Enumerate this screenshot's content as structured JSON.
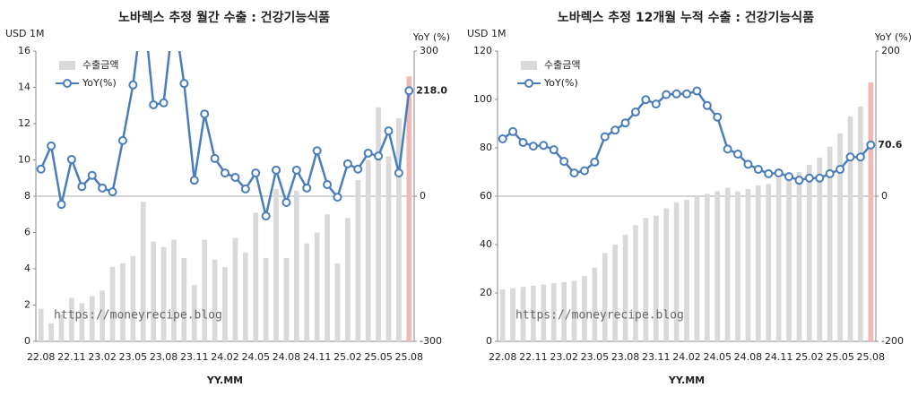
{
  "chart_data": [
    {
      "type": "bar_line",
      "title": "노바렉스 추정 월간 수출 : 건강기능식품",
      "y_label": "USD 1M",
      "y2_label": "YoY (%)",
      "x_label": "YY.MM",
      "watermark": "https://moneyrecipe.blog",
      "categories": [
        "22.08",
        null,
        null,
        "22.11",
        null,
        null,
        "23.02",
        null,
        null,
        "23.05",
        null,
        null,
        "23.08",
        null,
        null,
        "23.11",
        null,
        null,
        "24.02",
        null,
        null,
        "24.05",
        null,
        null,
        "24.08",
        null,
        null,
        "24.11",
        null,
        null,
        "25.02",
        null,
        null,
        "25.05",
        null,
        null,
        "25.08"
      ],
      "ylim": [
        0,
        16
      ],
      "yticks": [
        0,
        2,
        4,
        6,
        8,
        10,
        12,
        14,
        16
      ],
      "y2lim": [
        -300,
        300
      ],
      "y2ticks": [
        -300,
        0,
        300
      ],
      "series": [
        {
          "name": "수출금액",
          "kind": "bar",
          "color": "#d9d9d9",
          "last_color": "#f2b8b8",
          "values": [
            1.8,
            1.0,
            1.5,
            2.4,
            2.1,
            2.5,
            2.8,
            4.1,
            4.3,
            4.7,
            7.7,
            5.5,
            5.2,
            5.6,
            4.6,
            3.1,
            5.6,
            4.5,
            4.1,
            5.7,
            4.9,
            7.1,
            4.6,
            8.4,
            4.6,
            8.3,
            5.4,
            6.0,
            7.0,
            4.3,
            6.8,
            8.9,
            10.0,
            12.9,
            10.2,
            12.3,
            14.6
          ]
        },
        {
          "name": "YoY(%)",
          "kind": "line",
          "axis": "y2",
          "color": "#4a7ebb",
          "label_color": "#e00000",
          "values": [
            56,
            104,
            -17,
            76,
            20,
            43,
            17,
            9,
            115,
            230,
            400,
            189,
            193,
            380,
            233,
            33,
            170,
            78,
            48,
            39,
            15,
            48,
            -41,
            54,
            -13,
            54,
            17,
            94,
            24,
            -2,
            67,
            56,
            89,
            83,
            135,
            48,
            218
          ],
          "value_labels": [
            null,
            null,
            null,
            null,
            null,
            null,
            null,
            null,
            null,
            null,
            null,
            null,
            null,
            null,
            null,
            null,
            null,
            null,
            null,
            null,
            null,
            null,
            null,
            null,
            null,
            null,
            null,
            null,
            null,
            null,
            null,
            null,
            null,
            null,
            null,
            null,
            "218.0"
          ]
        }
      ]
    },
    {
      "type": "bar_line",
      "title": "노바렉스 추정 12개월 누적 수출 : 건강기능식품",
      "y_label": "USD 1M",
      "y2_label": "YoY (%)",
      "x_label": "YY.MM",
      "watermark": "https://moneyrecipe.blog",
      "categories": [
        "22.08",
        null,
        null,
        "22.11",
        null,
        null,
        "23.02",
        null,
        null,
        "23.05",
        null,
        null,
        "23.08",
        null,
        null,
        "23.11",
        null,
        null,
        "24.02",
        null,
        null,
        "24.05",
        null,
        null,
        "24.08",
        null,
        null,
        "24.11",
        null,
        null,
        "25.02",
        null,
        null,
        "25.05",
        null,
        null,
        "25.08"
      ],
      "ylim": [
        0,
        120
      ],
      "yticks": [
        0,
        20,
        40,
        60,
        80,
        100,
        120
      ],
      "y2lim": [
        -200,
        200
      ],
      "y2ticks": [
        -200,
        0,
        200
      ],
      "series": [
        {
          "name": "수출금액",
          "kind": "bar",
          "color": "#d9d9d9",
          "last_color": "#f2b8b8",
          "values": [
            21.5,
            22,
            22.5,
            23,
            23.5,
            24,
            24.5,
            25,
            27,
            30.5,
            36.5,
            40,
            44,
            48,
            51,
            52,
            55,
            57.5,
            58.5,
            60,
            61,
            62,
            63.5,
            62,
            63,
            64.5,
            65,
            67.5,
            68.5,
            70,
            73,
            76,
            80.5,
            86,
            93,
            97,
            107
          ]
        },
        {
          "name": "YoY(%)",
          "kind": "line",
          "axis": "y2",
          "color": "#4a7ebb",
          "label_color": "#e00000",
          "values": [
            79,
            89,
            74,
            69,
            70,
            64,
            48,
            32,
            35,
            47,
            82,
            91,
            101,
            116,
            133,
            127,
            140,
            141,
            141,
            145,
            125,
            109,
            65,
            58,
            44,
            37,
            31,
            32,
            27,
            22,
            25,
            25,
            31,
            37,
            54,
            54,
            70.6
          ],
          "value_labels": [
            null,
            null,
            null,
            null,
            null,
            null,
            null,
            null,
            null,
            null,
            null,
            null,
            null,
            null,
            null,
            null,
            null,
            null,
            null,
            null,
            null,
            null,
            null,
            null,
            null,
            null,
            null,
            null,
            null,
            null,
            null,
            null,
            null,
            null,
            null,
            null,
            "70.6"
          ]
        }
      ]
    }
  ]
}
